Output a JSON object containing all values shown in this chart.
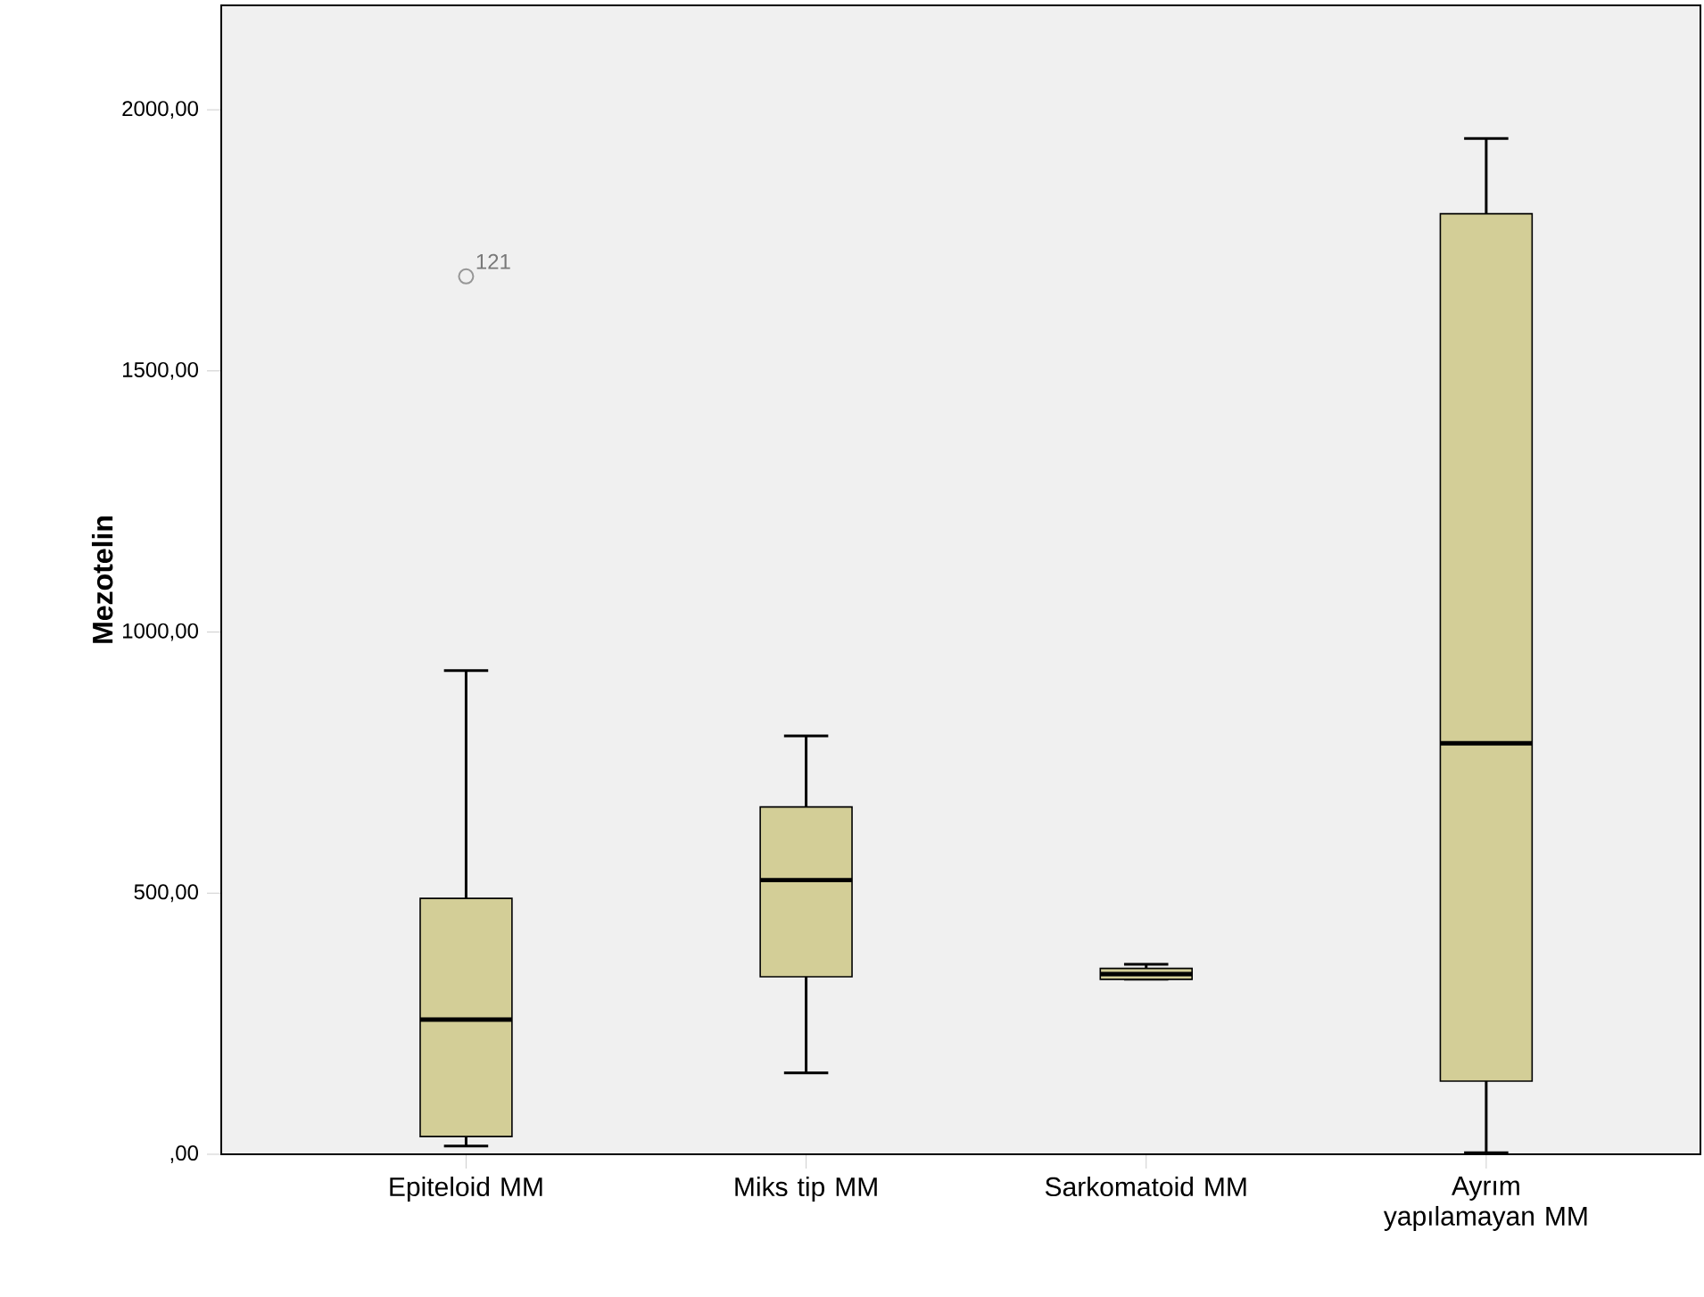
{
  "chart_data": {
    "type": "box",
    "ylabel": "Mezotelin",
    "categories": [
      "Epiteloid MM",
      "Miks tip MM",
      "Sarkomatoid MM",
      "Ayrım yapılamayan MM"
    ],
    "color": "#d3ce97",
    "boxes": [
      {
        "low": 16,
        "q1": 34,
        "median": 258,
        "q3": 490,
        "high": 926,
        "outliers": [
          1681
        ]
      },
      {
        "low": 156,
        "q1": 340,
        "median": 525,
        "q3": 665,
        "high": 801
      },
      {
        "low": 335,
        "q1": 335,
        "median": 345,
        "q3": 356,
        "high": 364
      },
      {
        "low": 3,
        "q1": 140,
        "median": 787,
        "q3": 1801,
        "high": 1945
      }
    ],
    "ylim": [
      0,
      2200
    ],
    "yticks": [
      {
        "value": 0,
        "label": ",00"
      },
      {
        "value": 500,
        "label": "500,00"
      },
      {
        "value": 1000,
        "label": "1000,00"
      },
      {
        "value": 1500,
        "label": "1500,00"
      },
      {
        "value": 2000,
        "label": "2000,00"
      }
    ],
    "annotations": [
      "121"
    ]
  }
}
